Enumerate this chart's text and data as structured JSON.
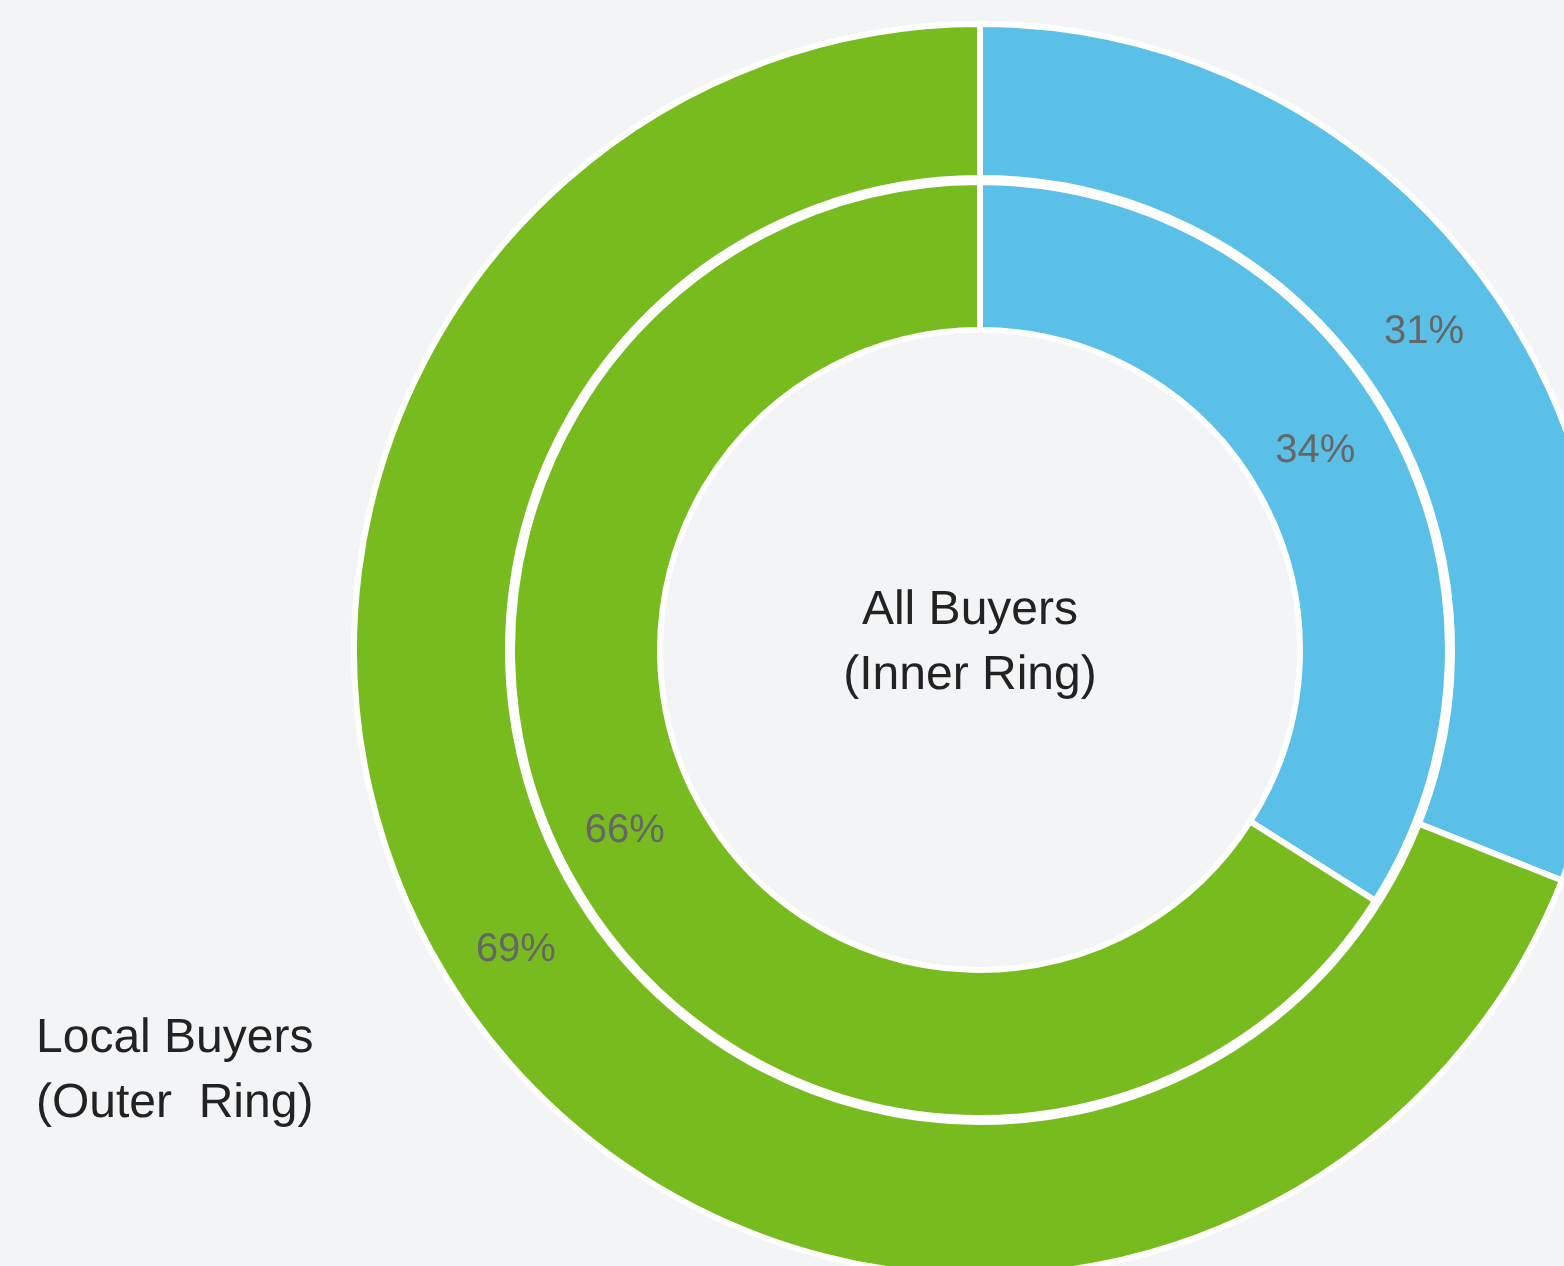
{
  "chart_data": {
    "type": "donut",
    "categories": [
      null,
      null
    ],
    "series": [
      {
        "name": "All Buyers\n(Inner Ring)",
        "values": [
          34,
          66
        ],
        "colors": [
          "#5bc0e8",
          "#78bb1e"
        ],
        "value_labels": [
          "34%",
          "66%"
        ]
      },
      {
        "name": "Local Buyers\n(Outer  Ring)",
        "values": [
          31,
          69
        ],
        "colors": [
          "#5bc0e8",
          "#78bb1e"
        ],
        "value_labels": [
          "31%",
          "69%"
        ]
      }
    ]
  }
}
